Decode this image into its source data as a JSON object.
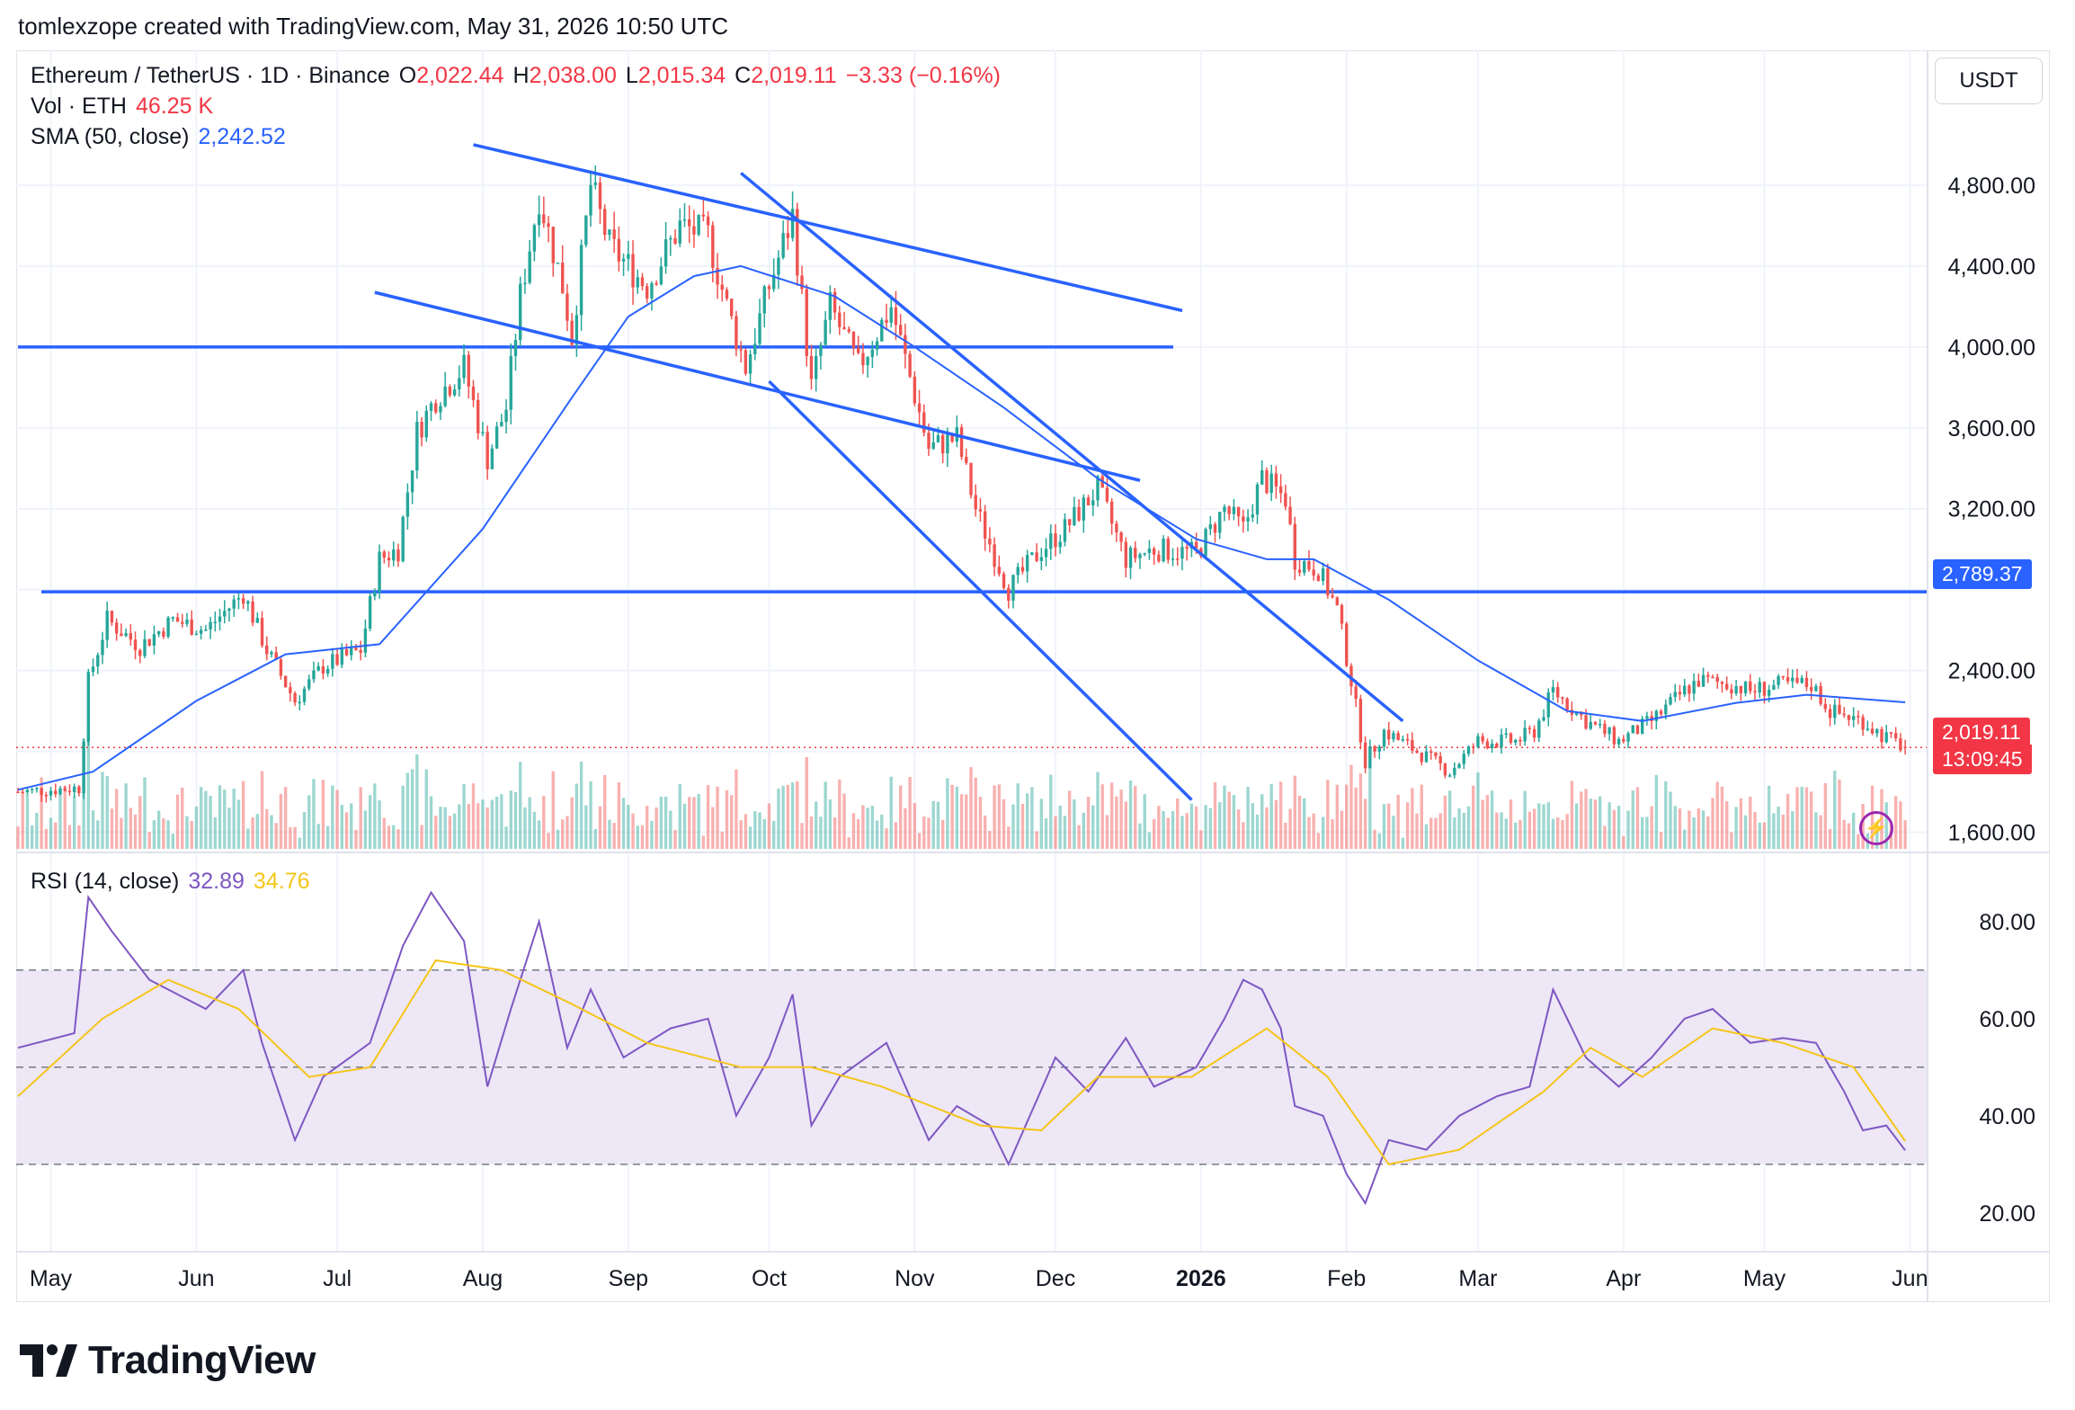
{
  "header": {
    "credit": "tomlexzope created with TradingView.com, May 31, 2026 10:50 UTC"
  },
  "legend": {
    "symbol": "Ethereum / TetherUS · 1D · Binance",
    "o_label": "O",
    "o_value": "2,022.44",
    "h_label": "H",
    "h_value": "2,038.00",
    "l_label": "L",
    "l_value": "2,015.34",
    "c_label": "C",
    "c_value": "2,019.11",
    "change": "−3.33 (−0.16%)",
    "vol_label": "Vol · ETH",
    "vol_value": "46.25 K",
    "sma_label": "SMA (50, close)",
    "sma_value": "2,242.52",
    "rsi_label": "RSI (14, close)",
    "rsi_value": "32.89",
    "rsi_ma_value": "34.76"
  },
  "price_axis": {
    "currency": "USDT",
    "ticks": [
      "4,800.00",
      "4,400.00",
      "4,000.00",
      "3,600.00",
      "3,200.00",
      "2,400.00",
      "1,600.00"
    ],
    "level_label": "2,789.37",
    "last_price_label": "2,019.11",
    "countdown": "13:09:45"
  },
  "rsi_axis": {
    "ticks": [
      "80.00",
      "60.00",
      "40.00",
      "20.00"
    ]
  },
  "time_axis": {
    "labels": [
      "May",
      "Jun",
      "Jul",
      "Aug",
      "Sep",
      "Oct",
      "Nov",
      "Dec",
      "2026",
      "Feb",
      "Mar",
      "Apr",
      "May",
      "Jun"
    ]
  },
  "brand": {
    "name": "TradingView"
  },
  "colors": {
    "up": "#26a69a",
    "down": "#ef5350",
    "sma": "#2962ff",
    "trendline": "#2962ff",
    "rsi": "#7e57c2",
    "rsi_ma": "#f5c518",
    "rsi_band": "#ede7f6",
    "last_price": "#f23645"
  },
  "icons": {
    "flash": "lightning-icon",
    "logo": "tradingview-logo-icon"
  },
  "chart_data": {
    "type": "candlestick",
    "title": "Ethereum / TetherUS · 1D · Binance",
    "ylim": [
      1500,
      5200
    ],
    "x_range": [
      "2025-04-24",
      "2026-06-04"
    ],
    "last_bar": {
      "date": "2026-05-31",
      "open": 2022.44,
      "high": 2038.0,
      "low": 2015.34,
      "close": 2019.11
    },
    "price_path": [
      [
        "2025-04-24",
        1800
      ],
      [
        "2025-05-07",
        1820
      ],
      [
        "2025-05-09",
        2350
      ],
      [
        "2025-05-13",
        2650
      ],
      [
        "2025-05-20",
        2520
      ],
      [
        "2025-05-27",
        2650
      ],
      [
        "2025-06-03",
        2600
      ],
      [
        "2025-06-11",
        2780
      ],
      [
        "2025-06-16",
        2500
      ],
      [
        "2025-06-22",
        2250
      ],
      [
        "2025-06-28",
        2420
      ],
      [
        "2025-07-06",
        2500
      ],
      [
        "2025-07-10",
        2950
      ],
      [
        "2025-07-14",
        3000
      ],
      [
        "2025-07-18",
        3580
      ],
      [
        "2025-07-22",
        3750
      ],
      [
        "2025-07-28",
        3900
      ],
      [
        "2025-08-02",
        3450
      ],
      [
        "2025-08-06",
        3700
      ],
      [
        "2025-08-09",
        4250
      ],
      [
        "2025-08-13",
        4750
      ],
      [
        "2025-08-18",
        4300
      ],
      [
        "2025-08-20",
        4050
      ],
      [
        "2025-08-24",
        4800
      ],
      [
        "2025-08-28",
        4500
      ],
      [
        "2025-09-05",
        4300
      ],
      [
        "2025-09-12",
        4600
      ],
      [
        "2025-09-18",
        4550
      ],
      [
        "2025-09-22",
        4200
      ],
      [
        "2025-09-26",
        3900
      ],
      [
        "2025-10-01",
        4300
      ],
      [
        "2025-10-06",
        4650
      ],
      [
        "2025-10-10",
        3800
      ],
      [
        "2025-10-14",
        4200
      ],
      [
        "2025-10-20",
        3900
      ],
      [
        "2025-10-27",
        4200
      ],
      [
        "2025-11-04",
        3500
      ],
      [
        "2025-11-10",
        3550
      ],
      [
        "2025-11-14",
        3200
      ],
      [
        "2025-11-21",
        2800
      ],
      [
        "2025-11-28",
        3000
      ],
      [
        "2025-12-03",
        3100
      ],
      [
        "2025-12-10",
        3300
      ],
      [
        "2025-12-16",
        2950
      ],
      [
        "2025-12-22",
        3000
      ],
      [
        "2025-12-31",
        2980
      ],
      [
        "2026-01-06",
        3200
      ],
      [
        "2026-01-10",
        3100
      ],
      [
        "2026-01-14",
        3350
      ],
      [
        "2026-01-19",
        3250
      ],
      [
        "2026-01-21",
        2950
      ],
      [
        "2026-01-26",
        2900
      ],
      [
        "2026-01-30",
        2700
      ],
      [
        "2026-02-02",
        2350
      ],
      [
        "2026-02-05",
        1950
      ],
      [
        "2026-02-09",
        2100
      ],
      [
        "2026-02-16",
        2000
      ],
      [
        "2026-02-23",
        1900
      ],
      [
        "2026-03-01",
        2050
      ],
      [
        "2026-03-09",
        2050
      ],
      [
        "2026-03-13",
        2100
      ],
      [
        "2026-03-17",
        2300
      ],
      [
        "2026-03-24",
        2150
      ],
      [
        "2026-03-31",
        2050
      ],
      [
        "2026-04-07",
        2150
      ],
      [
        "2026-04-14",
        2300
      ],
      [
        "2026-04-17",
        2350
      ],
      [
        "2026-04-24",
        2330
      ],
      [
        "2026-04-28",
        2300
      ],
      [
        "2026-05-05",
        2330
      ],
      [
        "2026-05-11",
        2330
      ],
      [
        "2026-05-15",
        2200
      ],
      [
        "2026-05-22",
        2150
      ],
      [
        "2026-05-26",
        2080
      ],
      [
        "2026-05-31",
        2019.11
      ]
    ],
    "sma_50": [
      [
        "2025-04-24",
        1810
      ],
      [
        "2025-05-10",
        1900
      ],
      [
        "2025-06-01",
        2250
      ],
      [
        "2025-06-20",
        2480
      ],
      [
        "2025-07-10",
        2530
      ],
      [
        "2025-08-01",
        3100
      ],
      [
        "2025-08-20",
        3750
      ],
      [
        "2025-09-01",
        4150
      ],
      [
        "2025-09-15",
        4350
      ],
      [
        "2025-09-25",
        4400
      ],
      [
        "2025-10-15",
        4250
      ],
      [
        "2025-11-01",
        4000
      ],
      [
        "2025-11-20",
        3700
      ],
      [
        "2025-12-10",
        3350
      ],
      [
        "2025-12-31",
        3050
      ],
      [
        "2026-01-15",
        2950
      ],
      [
        "2026-01-25",
        2950
      ],
      [
        "2026-02-10",
        2750
      ],
      [
        "2026-03-01",
        2450
      ],
      [
        "2026-03-20",
        2200
      ],
      [
        "2026-04-05",
        2150
      ],
      [
        "2026-04-25",
        2240
      ],
      [
        "2026-05-10",
        2280
      ],
      [
        "2026-05-31",
        2242.52
      ]
    ],
    "horizontal_levels": [
      4000,
      2789.37
    ],
    "trendlines": [
      {
        "from": [
          "2025-07-30",
          5000
        ],
        "to": [
          "2025-12-28",
          4180
        ]
      },
      {
        "from": [
          "2025-07-09",
          4270
        ],
        "to": [
          "2025-12-19",
          3340
        ]
      },
      {
        "from": [
          "2025-09-25",
          4860
        ],
        "to": [
          "2026-02-13",
          2150
        ]
      },
      {
        "from": [
          "2025-10-01",
          3830
        ],
        "to": [
          "2025-12-30",
          1760
        ]
      }
    ],
    "volume_range": [
      0,
      600
    ],
    "rsi": {
      "ylim": [
        12,
        92
      ],
      "overbought": 70,
      "mid": 50,
      "oversold": 30,
      "points": [
        [
          "2025-04-24",
          54
        ],
        [
          "2025-05-06",
          57
        ],
        [
          "2025-05-09",
          85
        ],
        [
          "2025-05-14",
          78
        ],
        [
          "2025-05-22",
          68
        ],
        [
          "2025-06-03",
          62
        ],
        [
          "2025-06-11",
          70
        ],
        [
          "2025-06-15",
          55
        ],
        [
          "2025-06-22",
          35
        ],
        [
          "2025-06-28",
          48
        ],
        [
          "2025-07-08",
          55
        ],
        [
          "2025-07-15",
          75
        ],
        [
          "2025-07-21",
          86
        ],
        [
          "2025-07-28",
          76
        ],
        [
          "2025-08-02",
          46
        ],
        [
          "2025-08-07",
          62
        ],
        [
          "2025-08-13",
          80
        ],
        [
          "2025-08-19",
          54
        ],
        [
          "2025-08-24",
          66
        ],
        [
          "2025-08-31",
          52
        ],
        [
          "2025-09-10",
          58
        ],
        [
          "2025-09-18",
          60
        ],
        [
          "2025-09-24",
          40
        ],
        [
          "2025-10-01",
          52
        ],
        [
          "2025-10-06",
          65
        ],
        [
          "2025-10-10",
          38
        ],
        [
          "2025-10-16",
          48
        ],
        [
          "2025-10-26",
          55
        ],
        [
          "2025-11-04",
          35
        ],
        [
          "2025-11-10",
          42
        ],
        [
          "2025-11-17",
          38
        ],
        [
          "2025-11-21",
          30
        ],
        [
          "2025-12-01",
          52
        ],
        [
          "2025-12-08",
          45
        ],
        [
          "2025-12-16",
          56
        ],
        [
          "2025-12-22",
          46
        ],
        [
          "2025-12-31",
          50
        ],
        [
          "2026-01-06",
          60
        ],
        [
          "2026-01-10",
          68
        ],
        [
          "2026-01-14",
          66
        ],
        [
          "2026-01-18",
          58
        ],
        [
          "2026-01-21",
          42
        ],
        [
          "2026-01-27",
          40
        ],
        [
          "2026-02-01",
          28
        ],
        [
          "2026-02-05",
          22
        ],
        [
          "2026-02-10",
          35
        ],
        [
          "2026-02-18",
          33
        ],
        [
          "2026-02-25",
          40
        ],
        [
          "2026-03-05",
          44
        ],
        [
          "2026-03-12",
          46
        ],
        [
          "2026-03-17",
          66
        ],
        [
          "2026-03-24",
          52
        ],
        [
          "2026-03-31",
          46
        ],
        [
          "2026-04-07",
          52
        ],
        [
          "2026-04-14",
          60
        ],
        [
          "2026-04-20",
          62
        ],
        [
          "2026-04-28",
          55
        ],
        [
          "2026-05-05",
          56
        ],
        [
          "2026-05-12",
          55
        ],
        [
          "2026-05-18",
          45
        ],
        [
          "2026-05-22",
          37
        ],
        [
          "2026-05-27",
          38
        ],
        [
          "2026-05-31",
          32.89
        ]
      ],
      "ma_points": [
        [
          "2025-04-24",
          44
        ],
        [
          "2025-05-12",
          60
        ],
        [
          "2025-05-26",
          68
        ],
        [
          "2025-06-10",
          62
        ],
        [
          "2025-06-25",
          48
        ],
        [
          "2025-07-08",
          50
        ],
        [
          "2025-07-22",
          72
        ],
        [
          "2025-08-05",
          70
        ],
        [
          "2025-08-20",
          63
        ],
        [
          "2025-09-05",
          55
        ],
        [
          "2025-09-25",
          50
        ],
        [
          "2025-10-10",
          50
        ],
        [
          "2025-10-25",
          46
        ],
        [
          "2025-11-15",
          38
        ],
        [
          "2025-11-28",
          37
        ],
        [
          "2025-12-10",
          48
        ],
        [
          "2025-12-30",
          48
        ],
        [
          "2026-01-15",
          58
        ],
        [
          "2026-01-28",
          48
        ],
        [
          "2026-02-10",
          30
        ],
        [
          "2026-02-25",
          33
        ],
        [
          "2026-03-15",
          45
        ],
        [
          "2026-03-25",
          54
        ],
        [
          "2026-04-05",
          48
        ],
        [
          "2026-04-20",
          58
        ],
        [
          "2026-05-05",
          55
        ],
        [
          "2026-05-20",
          50
        ],
        [
          "2026-05-31",
          34.76
        ]
      ]
    }
  }
}
